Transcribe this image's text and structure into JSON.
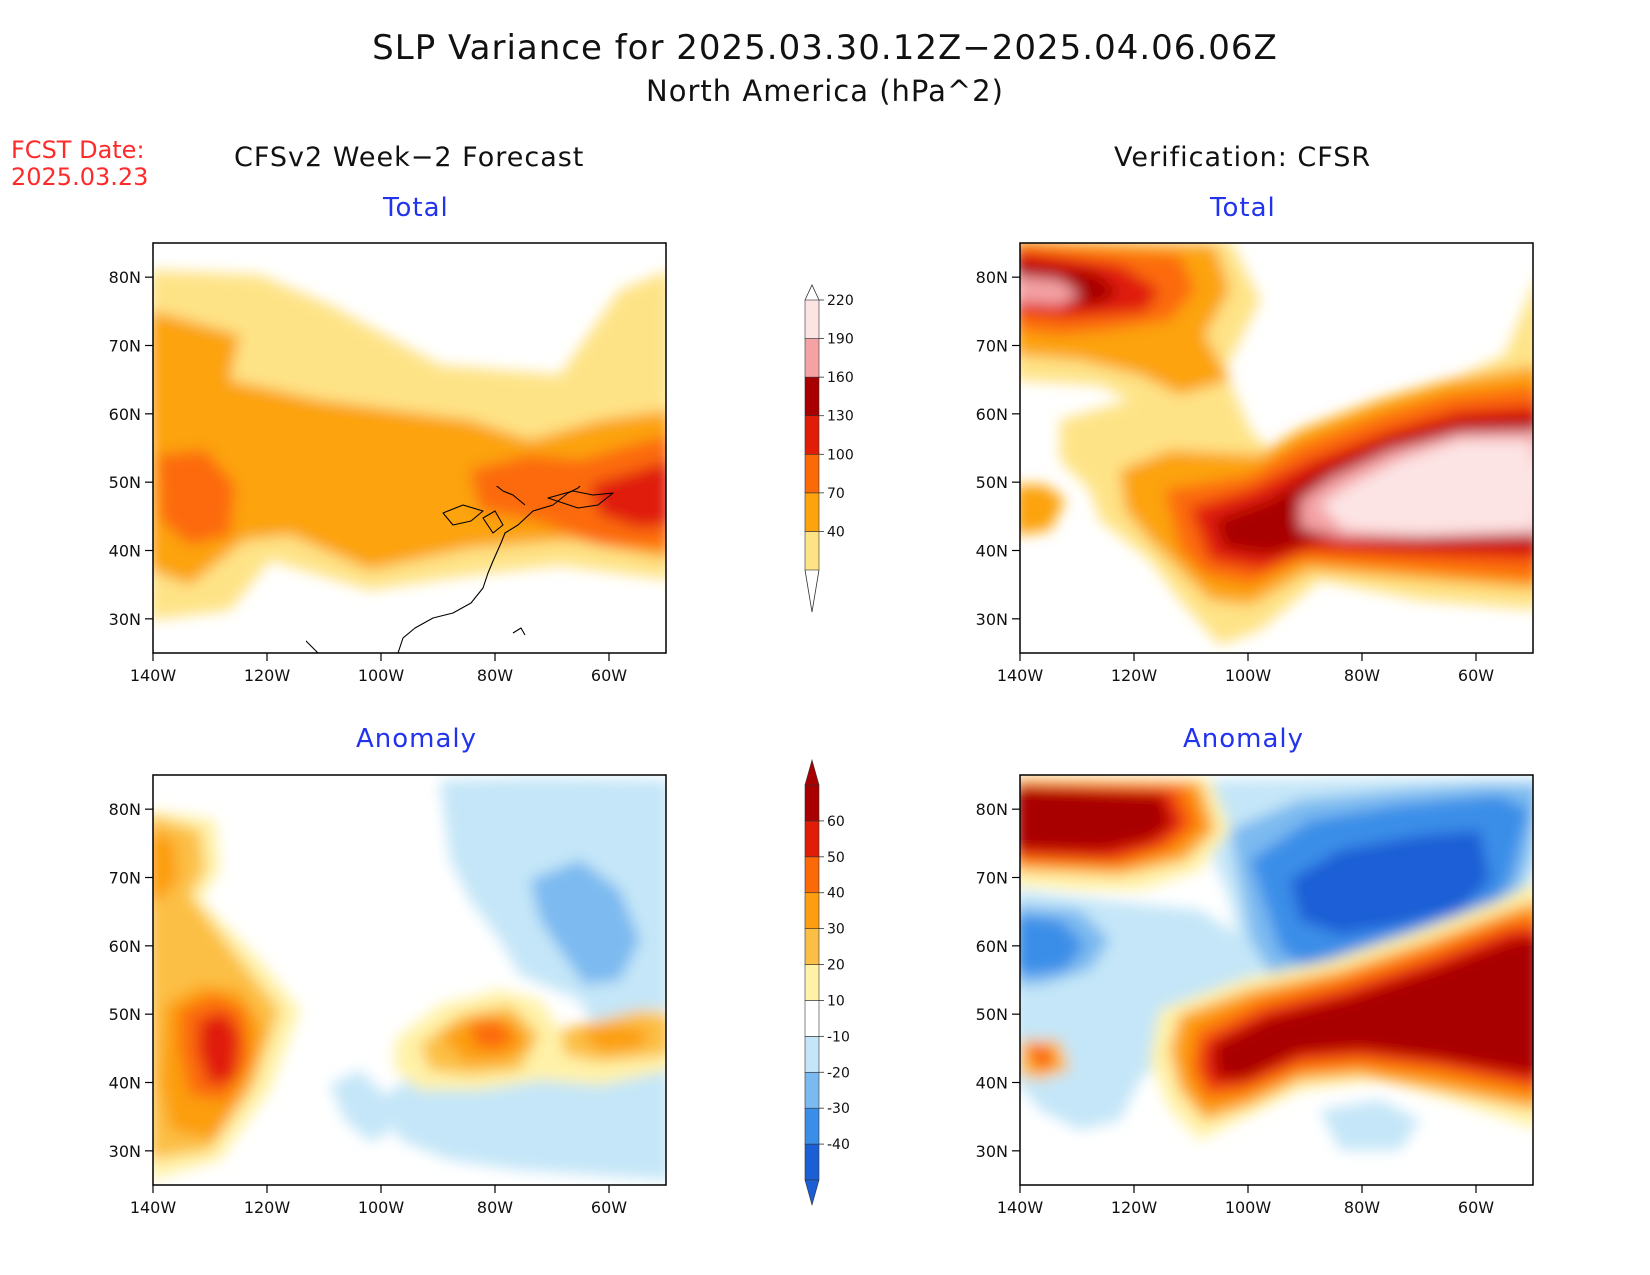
{
  "title": "SLP Variance for 2025.03.30.12Z−2025.04.06.06Z",
  "subtitle": "North America (hPa^2)",
  "fcst_label": "FCST Date:",
  "fcst_date": "2025.03.23",
  "left_column_title": "CFSv2 Week−2 Forecast",
  "right_column_title": "Verification: CFSR",
  "panel_titles": {
    "top": "Total",
    "bottom": "Anomaly"
  },
  "lat_ticks": [
    "80N",
    "70N",
    "60N",
    "50N",
    "40N",
    "30N"
  ],
  "lat_values": [
    80,
    70,
    60,
    50,
    40,
    30
  ],
  "lon_ticks": [
    "140W",
    "120W",
    "100W",
    "80W",
    "60W"
  ],
  "lon_values": [
    -140,
    -120,
    -100,
    -80,
    -60
  ],
  "map_extent": {
    "lon": [
      -140,
      -50
    ],
    "lat": [
      25,
      85
    ]
  },
  "total_colorbar": {
    "levels": [
      "40",
      "70",
      "100",
      "130",
      "160",
      "190",
      "220"
    ],
    "colors": [
      "#fee386",
      "#fca30e",
      "#fc6a08",
      "#e01e08",
      "#a80000",
      "#f4a2a4",
      "#fde4e4"
    ]
  },
  "anomaly_colorbar": {
    "levels": [
      "-40",
      "-30",
      "-20",
      "-10",
      "10",
      "20",
      "30",
      "40",
      "50",
      "60"
    ],
    "colors": [
      "#1a5fd6",
      "#3b8ee8",
      "#7bbaf0",
      "#c4e6f8",
      "#ffffff",
      "#fff2a8",
      "#fcbf45",
      "#fc9e10",
      "#fc6a08",
      "#e01e08",
      "#a80000"
    ]
  }
}
